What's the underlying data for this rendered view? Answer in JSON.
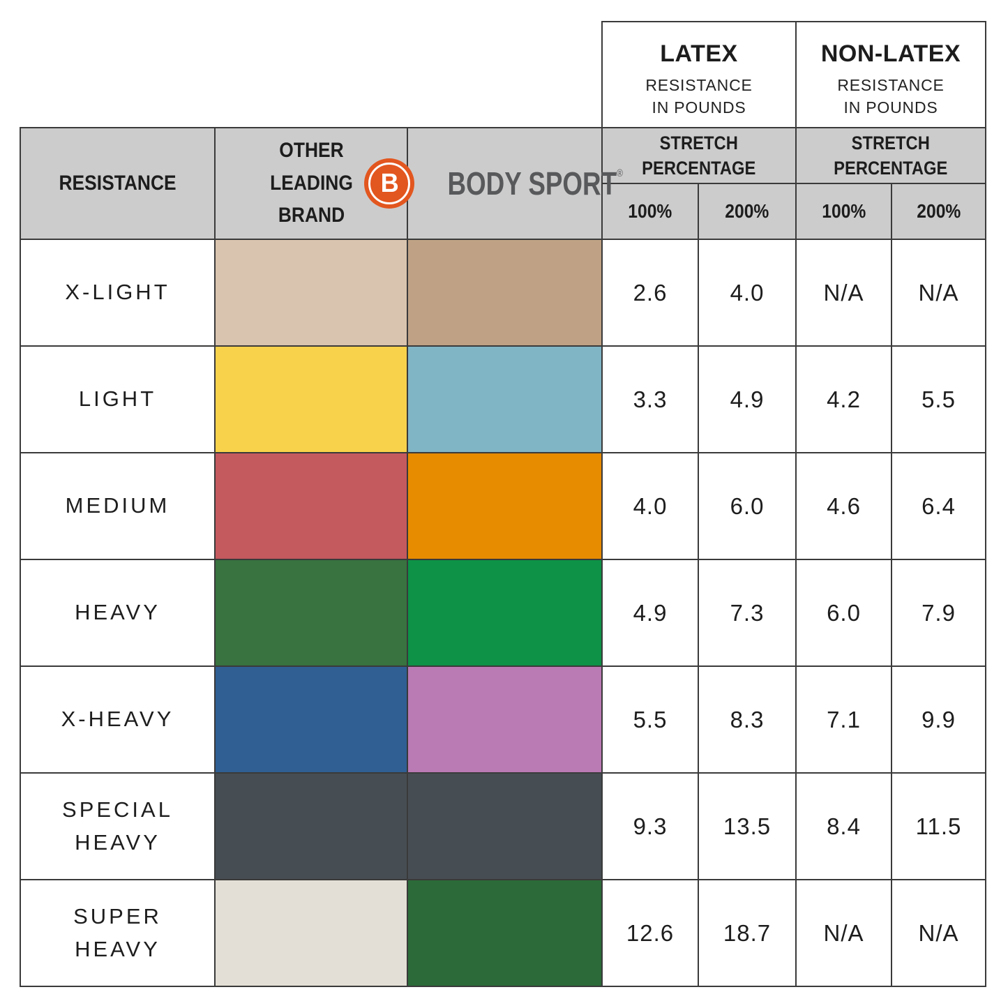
{
  "colors": {
    "table_border": "#3a3a3a",
    "header_background": "#cccccc",
    "brand_orange": "#e2561f",
    "brand_text_gray": "#58595b",
    "cell_background": "#ffffff",
    "text": "#1d1d1d"
  },
  "header": {
    "resistance_label": "RESISTANCE",
    "other_brand_lines": [
      "OTHER",
      "LEADING",
      "BRAND"
    ],
    "brand_letter": "B",
    "brand_name": "BODY SPORT",
    "registered_mark": "®",
    "latex_group": {
      "title": "LATEX",
      "subtitle_lines": [
        "RESISTANCE",
        "IN POUNDS"
      ],
      "stretch_lines": [
        "STRETCH",
        "PERCENTAGE"
      ],
      "percent_labels": [
        "100%",
        "200%"
      ]
    },
    "non_latex_group": {
      "title": "NON-LATEX",
      "subtitle_lines": [
        "RESISTANCE",
        "IN POUNDS"
      ],
      "stretch_lines": [
        "STRETCH",
        "PERCENTAGE"
      ],
      "percent_labels": [
        "100%",
        "200%"
      ]
    }
  },
  "chart_data": {
    "type": "table",
    "columns": [
      "RESISTANCE",
      "OTHER LEADING BRAND",
      "BODY SPORT",
      "LATEX STRETCH 100%",
      "LATEX STRETCH 200%",
      "NON-LATEX STRETCH 100%",
      "NON-LATEX STRETCH 200%"
    ],
    "rows": [
      {
        "label": "X-LIGHT",
        "other_brand_color": "#d9c4af",
        "body_sport_color": "#bfa285",
        "latex_100": "2.6",
        "latex_200": "4.0",
        "non_latex_100": "N/A",
        "non_latex_200": "N/A"
      },
      {
        "label": "LIGHT",
        "other_brand_color": "#f8d24a",
        "body_sport_color": "#80b5c6",
        "latex_100": "3.3",
        "latex_200": "4.9",
        "non_latex_100": "4.2",
        "non_latex_200": "5.5"
      },
      {
        "label": "MEDIUM",
        "other_brand_color": "#c4595e",
        "body_sport_color": "#e78b01",
        "latex_100": "4.0",
        "latex_200": "6.0",
        "non_latex_100": "4.6",
        "non_latex_200": "6.4"
      },
      {
        "label": "HEAVY",
        "other_brand_color": "#387340",
        "body_sport_color": "#0d9247",
        "latex_100": "4.9",
        "latex_200": "7.3",
        "non_latex_100": "6.0",
        "non_latex_200": "7.9"
      },
      {
        "label": "X-HEAVY",
        "other_brand_color": "#2f5f93",
        "body_sport_color": "#ba7ab4",
        "latex_100": "5.5",
        "latex_200": "8.3",
        "non_latex_100": "7.1",
        "non_latex_200": "9.9"
      },
      {
        "label": "SPECIAL HEAVY",
        "other_brand_color": "#474e53",
        "body_sport_color": "#474e53",
        "latex_100": "9.3",
        "latex_200": "13.5",
        "non_latex_100": "8.4",
        "non_latex_200": "11.5"
      },
      {
        "label": "SUPER HEAVY",
        "other_brand_color": "#e3dfd6",
        "body_sport_color": "#2c6b39",
        "latex_100": "12.6",
        "latex_200": "18.7",
        "non_latex_100": "N/A",
        "non_latex_200": "N/A"
      }
    ]
  }
}
